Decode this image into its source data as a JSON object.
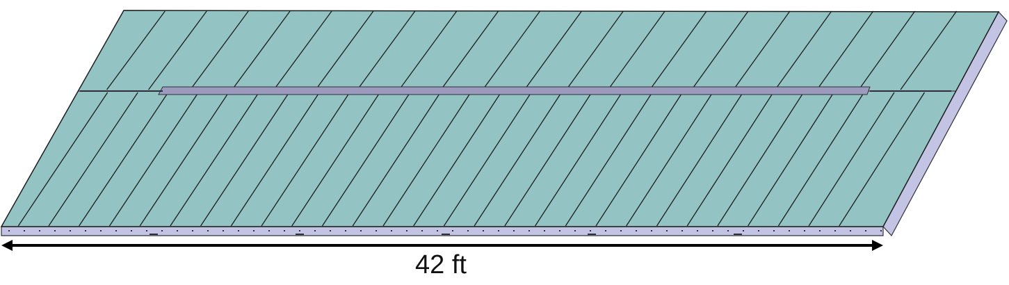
{
  "dimension": {
    "label": "42 ft"
  },
  "colors": {
    "panel_fill": "#93c4c3",
    "panel_line": "#1c1c1c",
    "frame_fill": "#c3c4e4",
    "frame_edge": "#2e2e3a",
    "rail_fill": "#9d9bbd",
    "arrow": "#000000"
  },
  "array": {
    "top_row_panels": 21,
    "bottom_row_panels": 29
  }
}
